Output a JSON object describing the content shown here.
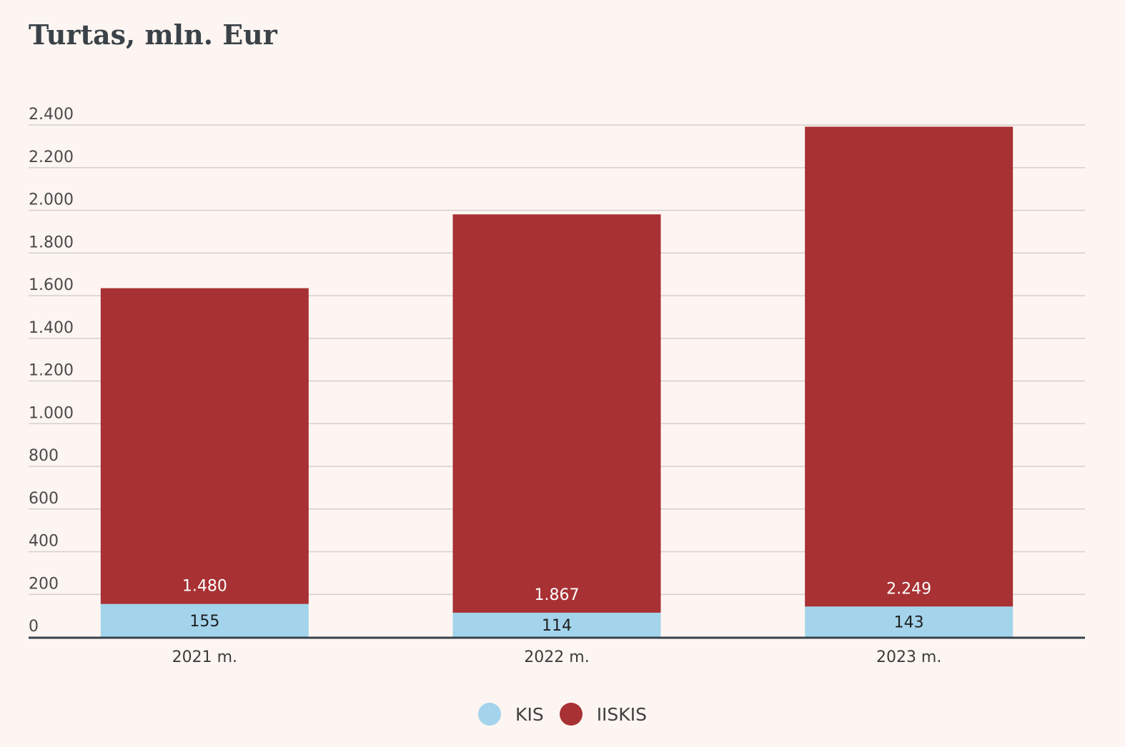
{
  "chart_data": {
    "type": "bar",
    "stacked": true,
    "title": "Turtas, mln. Eur",
    "xlabel": "",
    "ylabel": "",
    "categories": [
      "2021 m.",
      "2022 m.",
      "2023 m."
    ],
    "ylim": [
      0,
      2400
    ],
    "yticks": [
      0,
      200,
      400,
      600,
      800,
      1000,
      1200,
      1400,
      1600,
      1800,
      2000,
      2200,
      2400
    ],
    "ytick_labels": [
      "0",
      "200",
      "400",
      "600",
      "800",
      "1.000",
      "1.200",
      "1.400",
      "1.600",
      "1.800",
      "2.000",
      "2.200",
      "2.400"
    ],
    "grid": true,
    "legend_position": "bottom-center",
    "series": [
      {
        "name": "KIS",
        "values": [
          155,
          114,
          143
        ],
        "labels": [
          "155",
          "114",
          "143"
        ],
        "color": "#a3d4ec",
        "label_color": "#1e1e1e"
      },
      {
        "name": "IISKIS",
        "values": [
          1480,
          1867,
          2249
        ],
        "labels": [
          "1.480",
          "1.867",
          "2.249"
        ],
        "color": "#a83134",
        "label_color": "#ffffff"
      }
    ]
  }
}
